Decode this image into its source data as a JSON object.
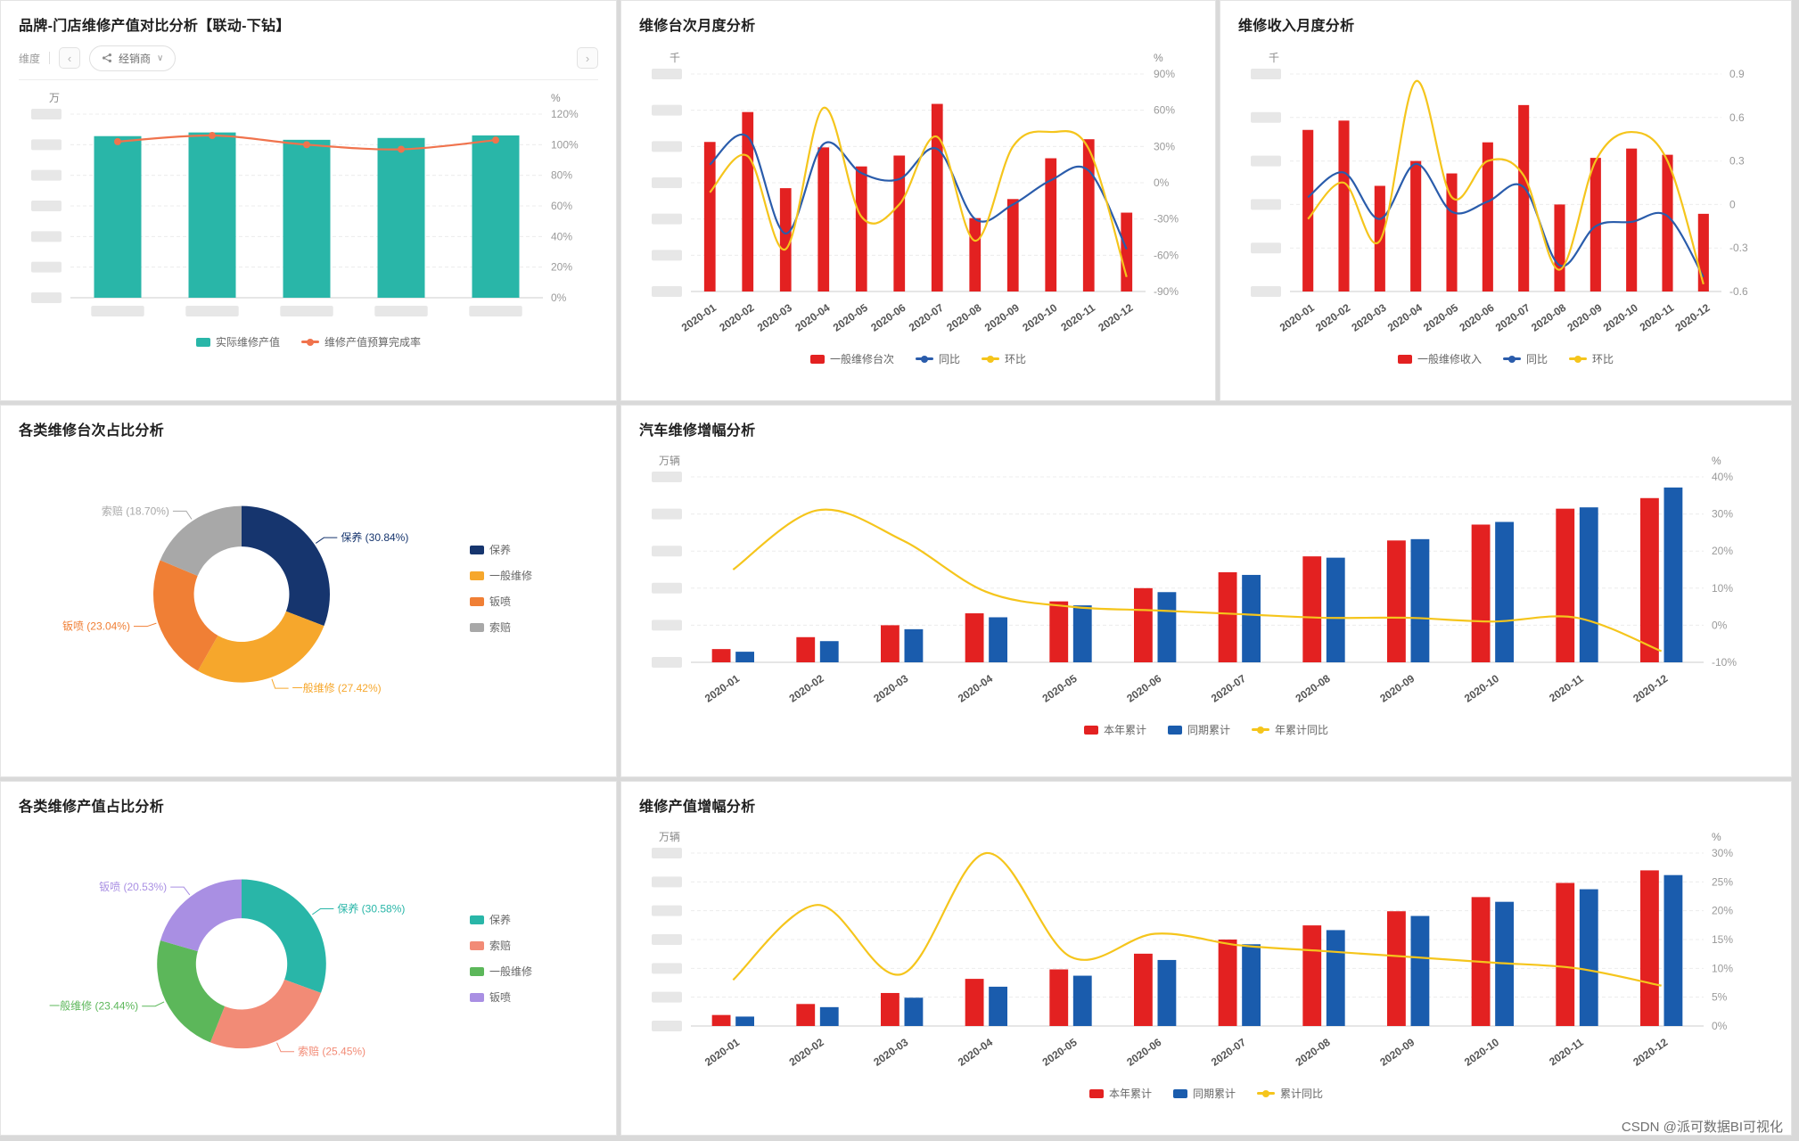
{
  "watermark": "CSDN @派可数据BI可视化",
  "panels": {
    "p1": {
      "title": "品牌-门店维修产值对比分析【联动-下钻】",
      "toolbar": {
        "dimension_label": "维度",
        "dealer_filter": "经销商",
        "prev_button": "‹",
        "next_button": "›",
        "caret": "∨"
      }
    },
    "p2": {
      "title": "维修台次月度分析"
    },
    "p3": {
      "title": "维修收入月度分析"
    },
    "p4": {
      "title": "各类维修台次占比分析"
    },
    "p5": {
      "title": "汽车维修增幅分析"
    },
    "p6": {
      "title": "各类维修产值占比分析"
    },
    "p7": {
      "title": "维修产值增幅分析"
    }
  },
  "chart_data": [
    {
      "type": "bar",
      "subtype": "combo",
      "title": "品牌-门店维修产值对比分析",
      "categories": [
        "",
        "",
        "",
        "",
        ""
      ],
      "x_blurred": true,
      "bar_ratio": 0.5,
      "left_axis": {
        "label": "万",
        "max": 5,
        "blur_ticks": true
      },
      "right_axis": {
        "label": "%",
        "min": 0,
        "max": 120,
        "step": 20,
        "suffix": "%"
      },
      "bars": [
        {
          "name": "实际维修产值",
          "color": "#29b6a8",
          "values": [
            4.4,
            4.5,
            4.3,
            4.35,
            4.42
          ]
        }
      ],
      "lines": [
        {
          "name": "维修产值预算完成率",
          "color": "#f0734d",
          "values": [
            102,
            106,
            100,
            97,
            103
          ],
          "markers": true
        }
      ],
      "legend_items": [
        {
          "label": "实际维修产值",
          "color": "#29b6a8",
          "type": "bar"
        },
        {
          "label": "维修产值预算完成率",
          "color": "#f0734d",
          "type": "line"
        }
      ]
    },
    {
      "type": "bar",
      "subtype": "combo",
      "title": "维修台次月度分析",
      "categories": [
        "2020-01",
        "2020-02",
        "2020-03",
        "2020-04",
        "2020-05",
        "2020-06",
        "2020-07",
        "2020-08",
        "2020-09",
        "2020-10",
        "2020-11",
        "2020-12"
      ],
      "left_axis": {
        "label": "千",
        "max": 8,
        "blur_ticks": true
      },
      "right_axis": {
        "label": "%",
        "min": -90,
        "max": 90,
        "step": 30,
        "suffix": "%"
      },
      "bars": [
        {
          "name": "一般维修台次",
          "color": "#e32121",
          "values": [
            5.5,
            6.6,
            3.8,
            5.3,
            4.6,
            5.0,
            6.9,
            2.7,
            3.4,
            4.9,
            5.6,
            2.9
          ]
        }
      ],
      "lines": [
        {
          "name": "同比",
          "color": "#2a5cab",
          "values": [
            15,
            38,
            -42,
            32,
            8,
            3,
            28,
            -30,
            -18,
            2,
            10,
            -55
          ]
        },
        {
          "name": "环比",
          "color": "#f5c51c",
          "values": [
            -8,
            22,
            -55,
            62,
            -28,
            -18,
            38,
            -48,
            30,
            42,
            28,
            -78
          ]
        }
      ],
      "legend_items": [
        {
          "label": "一般维修台次",
          "color": "#e32121",
          "type": "bar"
        },
        {
          "label": "同比",
          "color": "#2a5cab",
          "type": "line"
        },
        {
          "label": "环比",
          "color": "#f5c51c",
          "type": "line"
        }
      ]
    },
    {
      "type": "bar",
      "subtype": "combo",
      "title": "维修收入月度分析",
      "categories": [
        "2020-01",
        "2020-02",
        "2020-03",
        "2020-04",
        "2020-05",
        "2020-06",
        "2020-07",
        "2020-08",
        "2020-09",
        "2020-10",
        "2020-11",
        "2020-12"
      ],
      "left_axis": {
        "label": "千",
        "max": 7,
        "blur_ticks": true
      },
      "right_axis": {
        "label": "",
        "min": -0.6,
        "max": 0.9,
        "step": 0.3,
        "suffix": ""
      },
      "bars": [
        {
          "name": "一般维修收入",
          "color": "#e32121",
          "values": [
            5.2,
            5.5,
            3.4,
            4.2,
            3.8,
            4.8,
            6.0,
            2.8,
            4.3,
            4.6,
            4.4,
            2.5
          ]
        }
      ],
      "lines": [
        {
          "name": "同比",
          "color": "#2a5cab",
          "values": [
            0.05,
            0.22,
            -0.1,
            0.28,
            -0.05,
            0.02,
            0.12,
            -0.42,
            -0.15,
            -0.12,
            -0.08,
            -0.5
          ]
        },
        {
          "name": "环比",
          "color": "#f5c51c",
          "values": [
            -0.1,
            0.15,
            -0.25,
            0.85,
            0.05,
            0.3,
            0.2,
            -0.45,
            0.3,
            0.5,
            0.3,
            -0.55
          ]
        }
      ],
      "legend_items": [
        {
          "label": "一般维修收入",
          "color": "#e32121",
          "type": "bar"
        },
        {
          "label": "同比",
          "color": "#2a5cab",
          "type": "line"
        },
        {
          "label": "环比",
          "color": "#f5c51c",
          "type": "line"
        }
      ]
    },
    {
      "type": "pie",
      "subtype": "donut",
      "title": "各类维修台次占比分析",
      "slices": [
        {
          "label": "保养",
          "pct": 30.84,
          "color": "#16356e"
        },
        {
          "label": "一般维修",
          "pct": 27.42,
          "color": "#f6a72c"
        },
        {
          "label": "钣喷",
          "pct": 23.04,
          "color": "#f07f35"
        },
        {
          "label": "索赔",
          "pct": 18.7,
          "color": "#a8a8a8"
        }
      ],
      "legend_items": [
        {
          "label": "保养",
          "color": "#16356e",
          "type": "bar"
        },
        {
          "label": "一般维修",
          "color": "#f6a72c",
          "type": "bar"
        },
        {
          "label": "钣喷",
          "color": "#f07f35",
          "type": "bar"
        },
        {
          "label": "索赔",
          "color": "#a8a8a8",
          "type": "bar"
        }
      ]
    },
    {
      "type": "bar",
      "subtype": "combo",
      "title": "汽车维修增幅分析",
      "categories": [
        "2020-01",
        "2020-02",
        "2020-03",
        "2020-04",
        "2020-05",
        "2020-06",
        "2020-07",
        "2020-08",
        "2020-09",
        "2020-10",
        "2020-11",
        "2020-12"
      ],
      "left_axis": {
        "label": "万辆",
        "max": 14,
        "blur_ticks": true
      },
      "right_axis": {
        "label": "%",
        "min": -10,
        "max": 40,
        "step": 10,
        "suffix": "%"
      },
      "bars": [
        {
          "name": "本年累计",
          "color": "#e32121",
          "values": [
            1.0,
            1.9,
            2.8,
            3.7,
            4.6,
            5.6,
            6.8,
            8.0,
            9.2,
            10.4,
            11.6,
            12.4
          ]
        },
        {
          "name": "同期累计",
          "color": "#1a5cad",
          "values": [
            0.8,
            1.6,
            2.5,
            3.4,
            4.3,
            5.3,
            6.6,
            7.9,
            9.3,
            10.6,
            11.7,
            13.2
          ]
        }
      ],
      "lines": [
        {
          "name": "年累计同比",
          "color": "#f5c51c",
          "values": [
            15,
            31,
            23,
            9,
            5,
            4,
            3,
            2,
            2,
            1,
            2,
            -7
          ]
        }
      ],
      "legend_items": [
        {
          "label": "本年累计",
          "color": "#e32121",
          "type": "bar"
        },
        {
          "label": "同期累计",
          "color": "#1a5cad",
          "type": "bar"
        },
        {
          "label": "年累计同比",
          "color": "#f5c51c",
          "type": "line"
        }
      ]
    },
    {
      "type": "pie",
      "subtype": "donut",
      "title": "各类维修产值占比分析",
      "slices": [
        {
          "label": "保养",
          "pct": 30.58,
          "color": "#29b6a8"
        },
        {
          "label": "索赔",
          "pct": 25.45,
          "color": "#f28b76"
        },
        {
          "label": "一般维修",
          "pct": 23.44,
          "color": "#5cb75a"
        },
        {
          "label": "钣喷",
          "pct": 20.53,
          "color": "#a98fe3"
        }
      ],
      "legend_items": [
        {
          "label": "保养",
          "color": "#29b6a8",
          "type": "bar"
        },
        {
          "label": "索赔",
          "color": "#f28b76",
          "type": "bar"
        },
        {
          "label": "一般维修",
          "color": "#5cb75a",
          "type": "bar"
        },
        {
          "label": "钣喷",
          "color": "#a98fe3",
          "type": "bar"
        }
      ]
    },
    {
      "type": "bar",
      "subtype": "combo",
      "title": "维修产值增幅分析",
      "categories": [
        "2020-01",
        "2020-02",
        "2020-03",
        "2020-04",
        "2020-05",
        "2020-06",
        "2020-07",
        "2020-08",
        "2020-09",
        "2020-10",
        "2020-11",
        "2020-12"
      ],
      "left_axis": {
        "label": "万辆",
        "max": 11,
        "blur_ticks": true
      },
      "right_axis": {
        "label": "%",
        "min": 0,
        "max": 30,
        "step": 5,
        "suffix": "%"
      },
      "bars": [
        {
          "name": "本年累计",
          "color": "#e32121",
          "values": [
            0.7,
            1.4,
            2.1,
            3.0,
            3.6,
            4.6,
            5.5,
            6.4,
            7.3,
            8.2,
            9.1,
            9.9
          ]
        },
        {
          "name": "同期累计",
          "color": "#1a5cad",
          "values": [
            0.6,
            1.2,
            1.8,
            2.5,
            3.2,
            4.2,
            5.2,
            6.1,
            7.0,
            7.9,
            8.7,
            9.6
          ]
        }
      ],
      "lines": [
        {
          "name": "累计同比",
          "color": "#f5c51c",
          "values": [
            8,
            21,
            9,
            30,
            12,
            16,
            14,
            13,
            12,
            11,
            10,
            7
          ]
        }
      ],
      "legend_items": [
        {
          "label": "本年累计",
          "color": "#e32121",
          "type": "bar"
        },
        {
          "label": "同期累计",
          "color": "#1a5cad",
          "type": "bar"
        },
        {
          "label": "累计同比",
          "color": "#f5c51c",
          "type": "line"
        }
      ]
    }
  ]
}
